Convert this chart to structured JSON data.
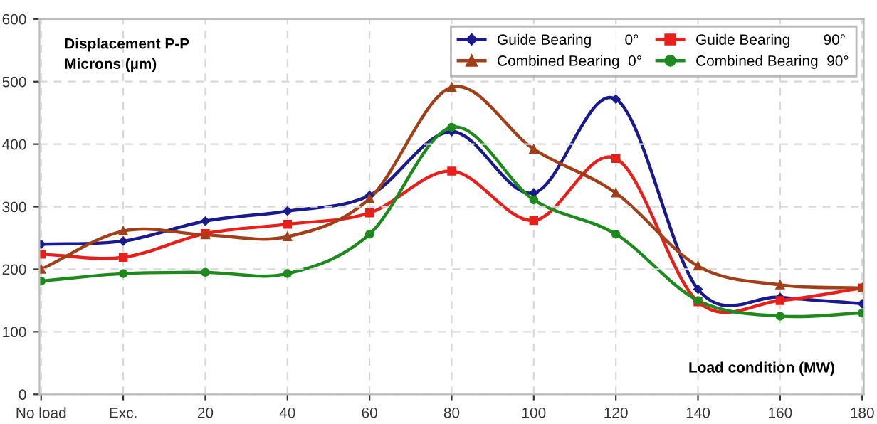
{
  "chart_data": {
    "type": "line",
    "ylabel": "Displacement P-P\nMicrons (µm)",
    "xlabel": "Load condition (MW)",
    "categories": [
      "No load",
      "Exc.",
      "20",
      "40",
      "60",
      "80",
      "100",
      "120",
      "140",
      "160",
      "180"
    ],
    "series": [
      {
        "name": "Guide Bearing        0°",
        "color": "#1a1a8c",
        "marker": "diamond",
        "values": [
          240,
          245,
          277,
          293,
          318,
          420,
          322,
          472,
          168,
          155,
          145
        ]
      },
      {
        "name": "Guide Bearing        90°",
        "color": "#e8201c",
        "marker": "square",
        "values": [
          224,
          219,
          257,
          272,
          290,
          357,
          278,
          377,
          148,
          150,
          170
        ]
      },
      {
        "name": "Combined Bearing  0°",
        "color": "#a0401a",
        "marker": "triangle",
        "values": [
          200,
          261,
          255,
          252,
          313,
          491,
          392,
          322,
          205,
          175,
          170
        ]
      },
      {
        "name": "Combined Bearing  90°",
        "color": "#1e8a1e",
        "marker": "circle",
        "values": [
          181,
          193,
          195,
          193,
          256,
          427,
          311,
          256,
          150,
          125,
          130
        ]
      }
    ],
    "ylim": [
      0,
      600
    ],
    "yticks": [
      0,
      100,
      200,
      300,
      400,
      500,
      600
    ],
    "grid": true,
    "legend": "top right",
    "line_style": "solid"
  }
}
